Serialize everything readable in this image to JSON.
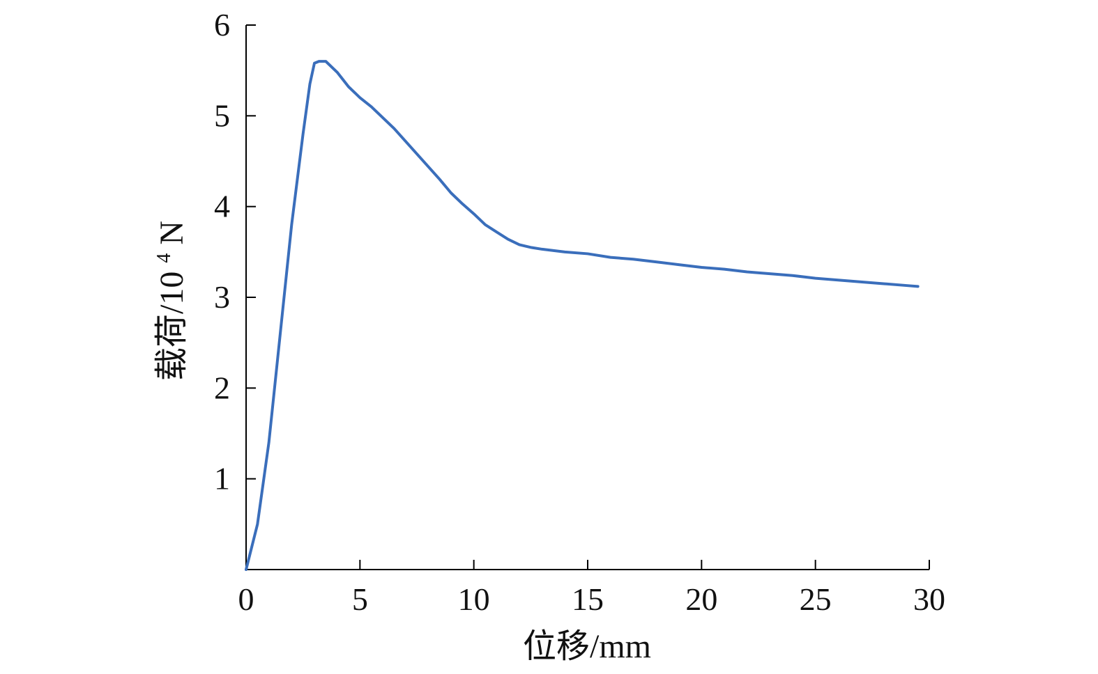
{
  "chart_data": {
    "type": "line",
    "title": "",
    "xlabel": "位移/mm",
    "ylabel_main": "载荷/10",
    "ylabel_sup": "4",
    "ylabel_unit": "N",
    "xlim": [
      0,
      30
    ],
    "ylim": [
      0,
      6
    ],
    "xticks": [
      {
        "value": 0,
        "label": "0"
      },
      {
        "value": 5,
        "label": "5"
      },
      {
        "value": 10,
        "label": "10"
      },
      {
        "value": 15,
        "label": "15"
      },
      {
        "value": 20,
        "label": "20"
      },
      {
        "value": 25,
        "label": "25"
      },
      {
        "value": 30,
        "label": "30"
      }
    ],
    "yticks": [
      {
        "value": 1,
        "label": "1"
      },
      {
        "value": 2,
        "label": "2"
      },
      {
        "value": 3,
        "label": "3"
      },
      {
        "value": 4,
        "label": "4"
      },
      {
        "value": 5,
        "label": "5"
      },
      {
        "value": 6,
        "label": "6"
      }
    ],
    "grid": false,
    "legend": "none",
    "series": [
      {
        "color": "#3A6EBB",
        "points": [
          [
            0,
            0
          ],
          [
            0.5,
            0.5
          ],
          [
            1.0,
            1.4
          ],
          [
            1.5,
            2.6
          ],
          [
            2.0,
            3.8
          ],
          [
            2.5,
            4.8
          ],
          [
            2.8,
            5.35
          ],
          [
            3.0,
            5.58
          ],
          [
            3.2,
            5.6
          ],
          [
            3.5,
            5.6
          ],
          [
            4.0,
            5.48
          ],
          [
            4.5,
            5.32
          ],
          [
            5.0,
            5.2
          ],
          [
            5.5,
            5.1
          ],
          [
            6.0,
            4.98
          ],
          [
            6.5,
            4.86
          ],
          [
            7.0,
            4.72
          ],
          [
            7.5,
            4.58
          ],
          [
            8.0,
            4.44
          ],
          [
            8.5,
            4.3
          ],
          [
            9.0,
            4.15
          ],
          [
            9.5,
            4.03
          ],
          [
            10.0,
            3.92
          ],
          [
            10.5,
            3.8
          ],
          [
            11.0,
            3.72
          ],
          [
            11.5,
            3.64
          ],
          [
            12.0,
            3.58
          ],
          [
            12.5,
            3.55
          ],
          [
            13.0,
            3.53
          ],
          [
            14.0,
            3.5
          ],
          [
            15.0,
            3.48
          ],
          [
            16.0,
            3.44
          ],
          [
            17.0,
            3.42
          ],
          [
            18.0,
            3.39
          ],
          [
            19.0,
            3.36
          ],
          [
            20.0,
            3.33
          ],
          [
            21.0,
            3.31
          ],
          [
            22.0,
            3.28
          ],
          [
            23.0,
            3.26
          ],
          [
            24.0,
            3.24
          ],
          [
            25.0,
            3.21
          ],
          [
            26.0,
            3.19
          ],
          [
            27.0,
            3.17
          ],
          [
            28.0,
            3.15
          ],
          [
            29.0,
            3.13
          ],
          [
            29.5,
            3.12
          ]
        ]
      }
    ]
  }
}
